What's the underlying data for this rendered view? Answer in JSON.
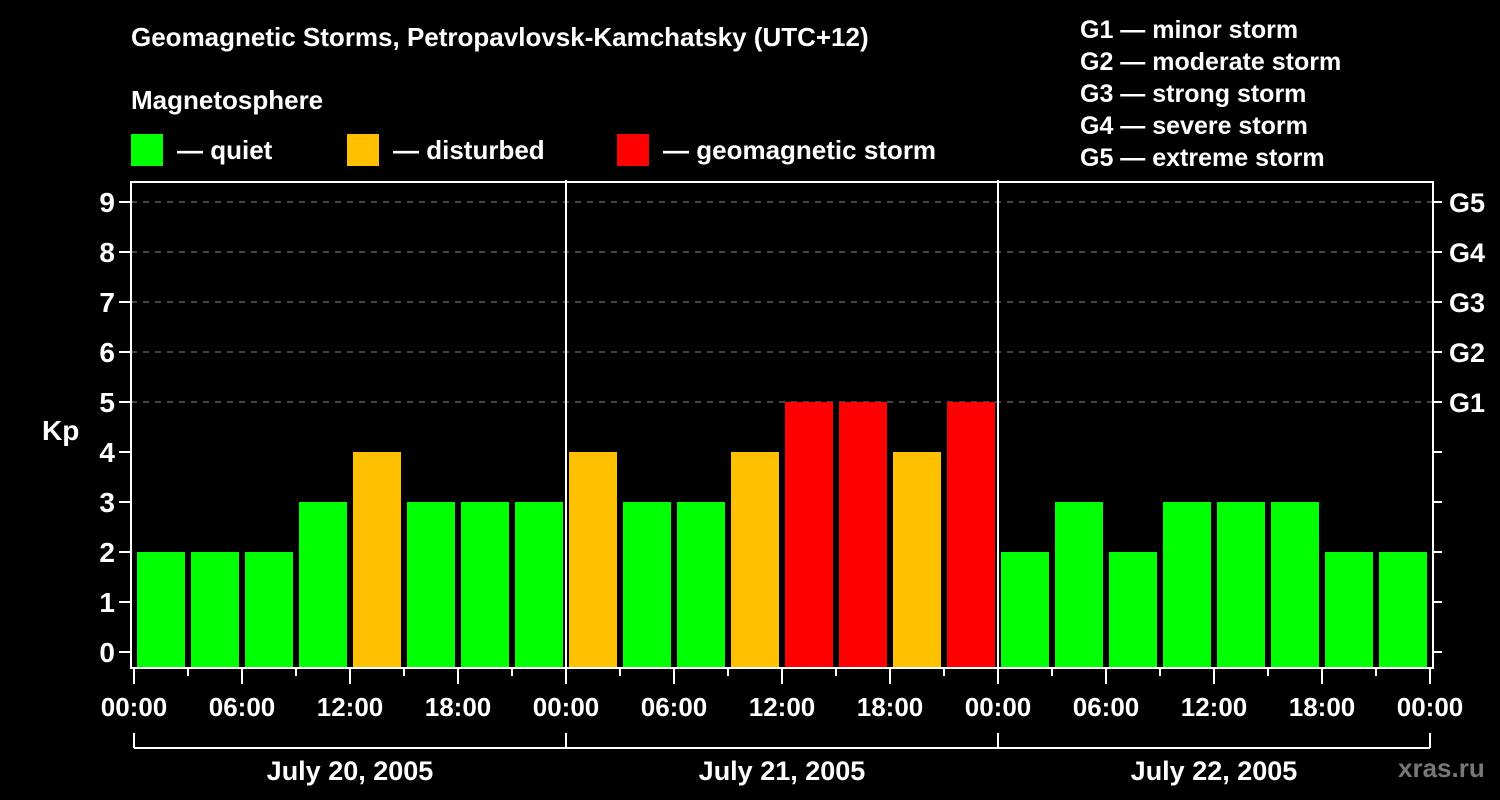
{
  "header": {
    "title": "Geomagnetic Storms, Petropavlovsk-Kamchatsky (UTC+12)",
    "subtitle": "Magnetosphere"
  },
  "legend": {
    "items": [
      {
        "label": "— quiet",
        "color": "#00ff00",
        "x": 131
      },
      {
        "label": "— disturbed",
        "color": "#ffc000",
        "x": 347
      },
      {
        "label": "— geomagnetic storm",
        "color": "#ff0000",
        "x": 617
      }
    ]
  },
  "storm_scale": {
    "items": [
      "G1 — minor storm",
      "G2 — moderate storm",
      "G3 — strong storm",
      "G4 — severe storm",
      "G5 — extreme storm"
    ]
  },
  "watermark": "xras.ru",
  "colors": {
    "quiet": "#00ff00",
    "disturbed": "#ffc000",
    "storm": "#ff0000",
    "axis": "#ffffff",
    "grid": "#888888",
    "background": "#000000"
  },
  "chart_data": {
    "type": "bar",
    "title": "Geomagnetic Storms, Petropavlovsk-Kamchatsky (UTC+12)",
    "subtitle": "Magnetosphere",
    "ylabel": "Kp",
    "xlabel": "",
    "ylim": [
      0,
      9
    ],
    "yticks": [
      0,
      1,
      2,
      3,
      4,
      5,
      6,
      7,
      8,
      9
    ],
    "right_axis_labels": [
      {
        "kp": 5,
        "label": "G1"
      },
      {
        "kp": 6,
        "label": "G2"
      },
      {
        "kp": 7,
        "label": "G3"
      },
      {
        "kp": 8,
        "label": "G4"
      },
      {
        "kp": 9,
        "label": "G5"
      }
    ],
    "grid": {
      "horizontal_dashed_at": [
        5,
        6,
        7,
        8,
        9
      ]
    },
    "x_tick_labels": [
      "00:00",
      "06:00",
      "12:00",
      "18:00",
      "00:00",
      "06:00",
      "12:00",
      "18:00",
      "00:00",
      "06:00",
      "12:00",
      "18:00",
      "00:00"
    ],
    "days": [
      "July 20, 2005",
      "July 21, 2005",
      "July 22, 2005"
    ],
    "interval_hours": 3,
    "categories": [
      "Jul 20 00-03",
      "Jul 20 03-06",
      "Jul 20 06-09",
      "Jul 20 09-12",
      "Jul 20 12-15",
      "Jul 20 15-18",
      "Jul 20 18-21",
      "Jul 20 21-24",
      "Jul 21 00-03",
      "Jul 21 03-06",
      "Jul 21 06-09",
      "Jul 21 09-12",
      "Jul 21 12-15",
      "Jul 21 15-18",
      "Jul 21 18-21",
      "Jul 21 21-24",
      "Jul 22 00-03",
      "Jul 22 03-06",
      "Jul 22 06-09",
      "Jul 22 09-12",
      "Jul 22 12-15",
      "Jul 22 15-18",
      "Jul 22 18-21",
      "Jul 22 21-24"
    ],
    "values": [
      2,
      2,
      2,
      3,
      4,
      3,
      3,
      3,
      4,
      3,
      3,
      4,
      5,
      5,
      4,
      5,
      2,
      3,
      2,
      3,
      3,
      3,
      2,
      2
    ],
    "status": [
      "quiet",
      "quiet",
      "quiet",
      "quiet",
      "disturbed",
      "quiet",
      "quiet",
      "quiet",
      "disturbed",
      "quiet",
      "quiet",
      "disturbed",
      "storm",
      "storm",
      "disturbed",
      "storm",
      "quiet",
      "quiet",
      "quiet",
      "quiet",
      "quiet",
      "quiet",
      "quiet",
      "quiet"
    ],
    "legend": [
      "quiet",
      "disturbed",
      "geomagnetic storm"
    ],
    "legend_position": "top"
  }
}
